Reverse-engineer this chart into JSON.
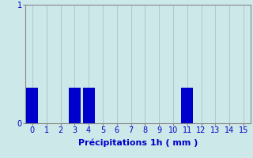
{
  "values": [
    0.3,
    0,
    0,
    0.3,
    0.3,
    0,
    0,
    0,
    0,
    0,
    0,
    0.3,
    0,
    0,
    0,
    0
  ],
  "x_positions": [
    0,
    1,
    2,
    3,
    4,
    5,
    6,
    7,
    8,
    9,
    10,
    11,
    12,
    13,
    14,
    15
  ],
  "x_tick_labels": [
    "0",
    "1",
    "2",
    "3",
    "4",
    "5",
    "6",
    "7",
    "8",
    "9",
    "10",
    "11",
    "12",
    "13",
    "14",
    "15"
  ],
  "bar_color": "#0000cc",
  "background_color": "#cce8e8",
  "grid_color": "#aacccc",
  "xlabel": "Précipitations 1h ( mm )",
  "ylim": [
    0,
    1.0
  ],
  "yticks": [
    0,
    1
  ],
  "xlim": [
    -0.5,
    15.5
  ],
  "bar_width": 0.85,
  "xlabel_color": "#0000cc",
  "tick_color": "#0000cc",
  "axis_color": "#888888",
  "tick_fontsize": 7,
  "xlabel_fontsize": 8
}
